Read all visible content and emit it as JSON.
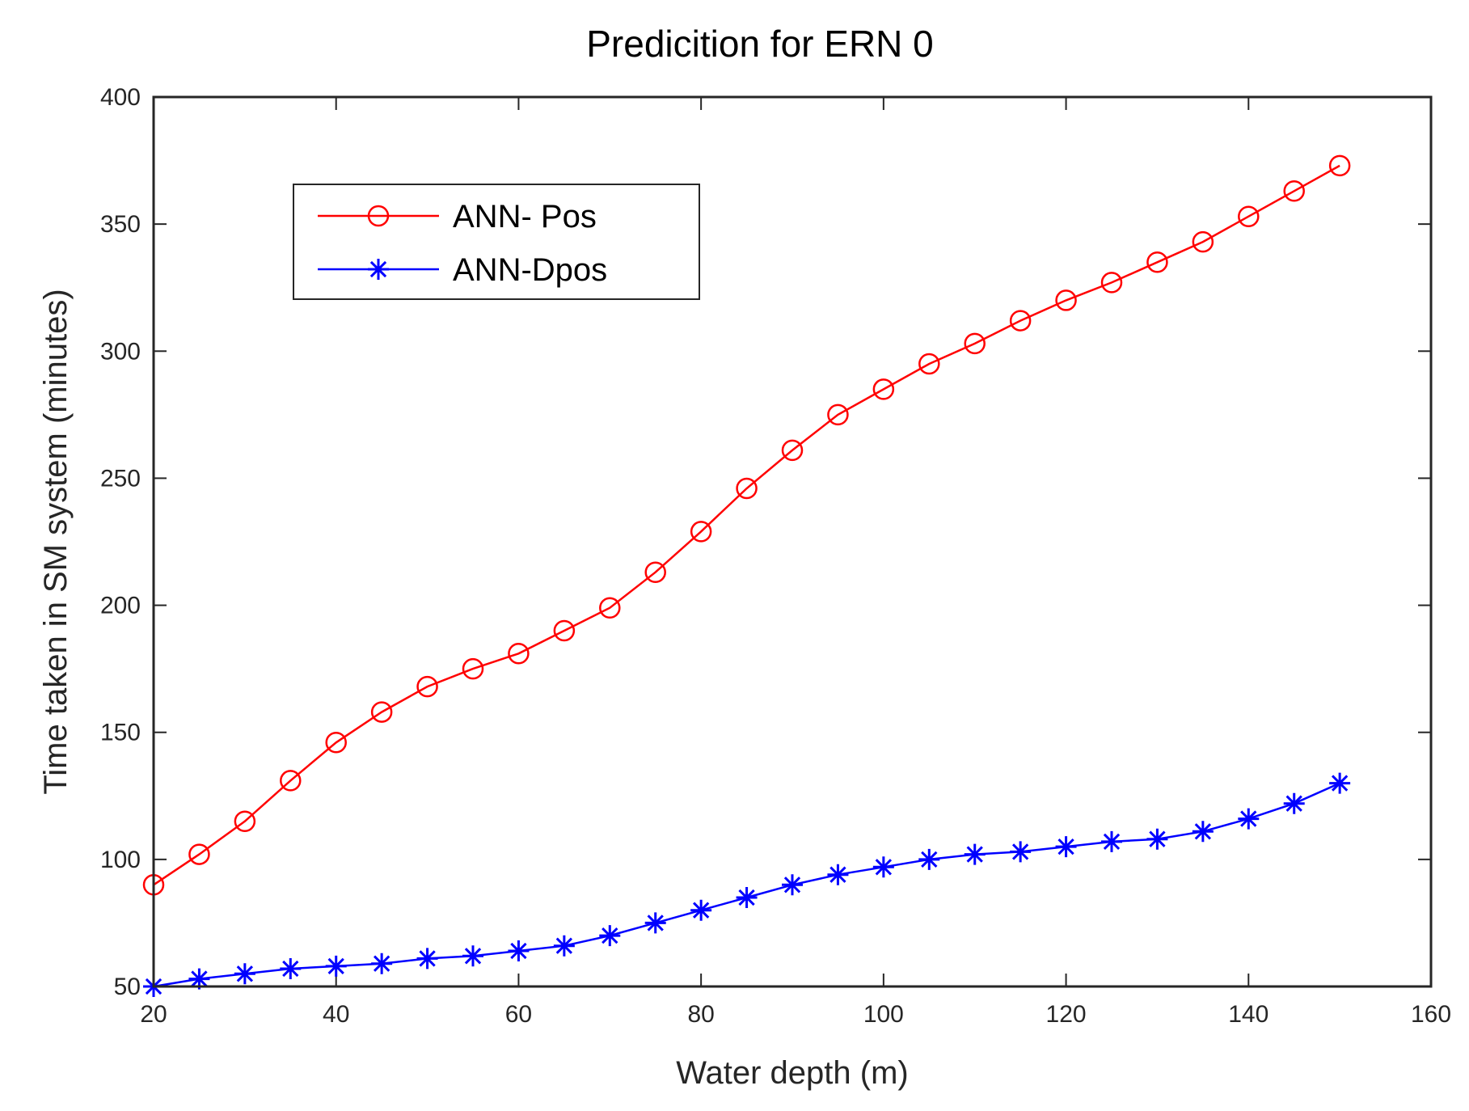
{
  "chart_data": {
    "type": "line",
    "title": "Predicition for ERN 0",
    "xlabel": "Water depth (m)",
    "ylabel": "Time taken in SM system (minutes)",
    "xlim": [
      20,
      160
    ],
    "ylim": [
      50,
      400
    ],
    "xticks": [
      20,
      40,
      60,
      80,
      100,
      120,
      140,
      160
    ],
    "yticks": [
      50,
      100,
      150,
      200,
      250,
      300,
      350,
      400
    ],
    "grid": false,
    "legend_location": "upper-left",
    "x": [
      20,
      25,
      30,
      35,
      40,
      45,
      50,
      55,
      60,
      65,
      70,
      75,
      80,
      85,
      90,
      95,
      100,
      105,
      110,
      115,
      120,
      125,
      130,
      135,
      140,
      145,
      150
    ],
    "series": [
      {
        "name": "ANN- Pos",
        "color": "#ff0000",
        "marker": "circle",
        "values": [
          90,
          102,
          115,
          131,
          146,
          158,
          168,
          175,
          181,
          190,
          199,
          213,
          229,
          246,
          261,
          275,
          285,
          295,
          303,
          312,
          320,
          327,
          335,
          343,
          353,
          363,
          373
        ]
      },
      {
        "name": "ANN-Dpos",
        "color": "#0000ff",
        "marker": "star",
        "values": [
          50,
          53,
          55,
          57,
          58,
          59,
          61,
          62,
          64,
          66,
          70,
          75,
          80,
          85,
          90,
          94,
          97,
          100,
          102,
          103,
          105,
          107,
          108,
          111,
          116,
          122,
          130
        ]
      }
    ]
  }
}
